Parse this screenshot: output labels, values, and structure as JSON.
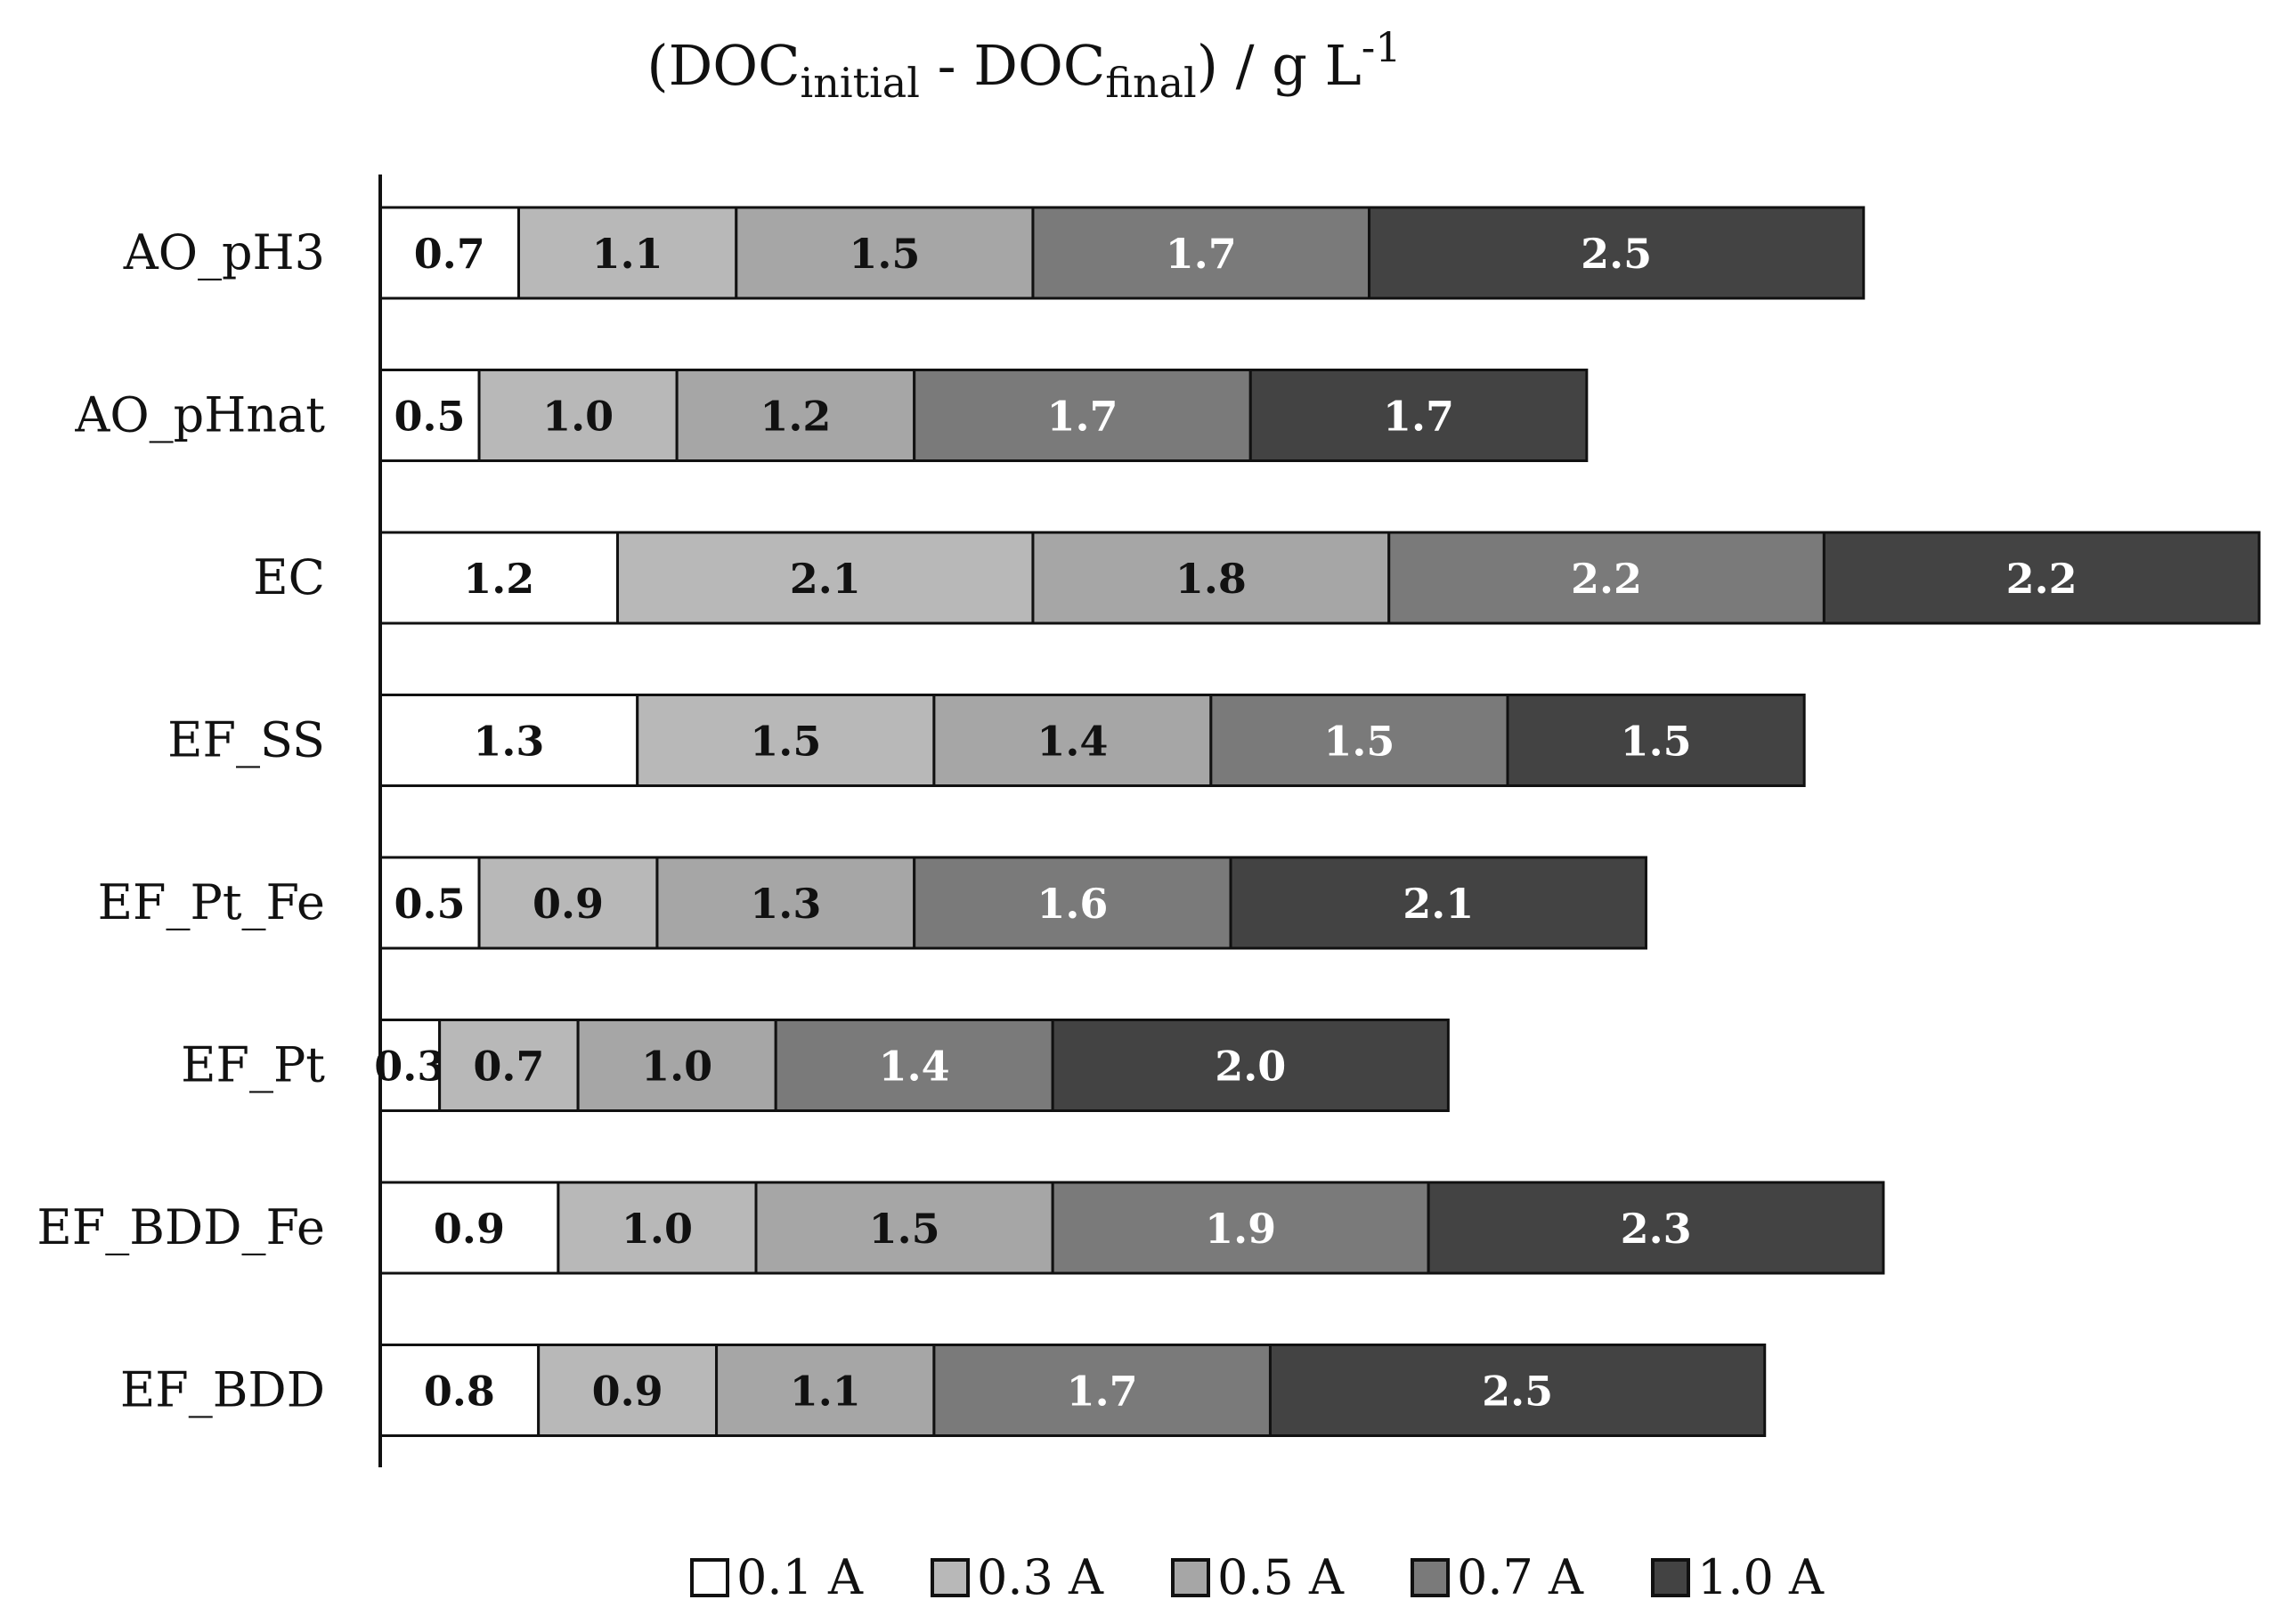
{
  "chart_data": {
    "type": "bar",
    "orientation": "horizontal",
    "stacked": true,
    "title": {
      "lead": "(DOC",
      "sub1": "initial",
      "mid": " - DOC",
      "sub2": "final",
      "tail": ") / g L",
      "sup": "-1"
    },
    "categories": [
      "AO_pH3",
      "AO_pHnat",
      "EC",
      "EF_SS",
      "EF_Pt_Fe",
      "EF_Pt",
      "EF_BDD_Fe",
      "EF_BDD"
    ],
    "series": [
      {
        "name": "0.1 A",
        "color": "#ffffff",
        "label_color": "#111111",
        "values": [
          0.7,
          0.5,
          1.2,
          1.3,
          0.5,
          0.3,
          0.9,
          0.8
        ]
      },
      {
        "name": "0.3 A",
        "color": "#b8b8b8",
        "label_color": "#111111",
        "values": [
          1.1,
          1.0,
          2.1,
          1.5,
          0.9,
          0.7,
          1.0,
          0.9
        ]
      },
      {
        "name": "0.5 A",
        "color": "#a6a6a6",
        "label_color": "#111111",
        "values": [
          1.5,
          1.2,
          1.8,
          1.4,
          1.3,
          1.0,
          1.5,
          1.1
        ]
      },
      {
        "name": "0.7 A",
        "color": "#7a7a7a",
        "label_color": "#ffffff",
        "values": [
          1.7,
          1.7,
          2.2,
          1.5,
          1.6,
          1.4,
          1.9,
          1.7
        ]
      },
      {
        "name": "1.0 A",
        "color": "#434343",
        "label_color": "#ffffff",
        "values": [
          2.5,
          1.7,
          2.2,
          1.5,
          2.1,
          2.0,
          2.3,
          2.5
        ]
      }
    ],
    "legend_position": "bottom",
    "grid": false,
    "x_axis_visible": false
  }
}
